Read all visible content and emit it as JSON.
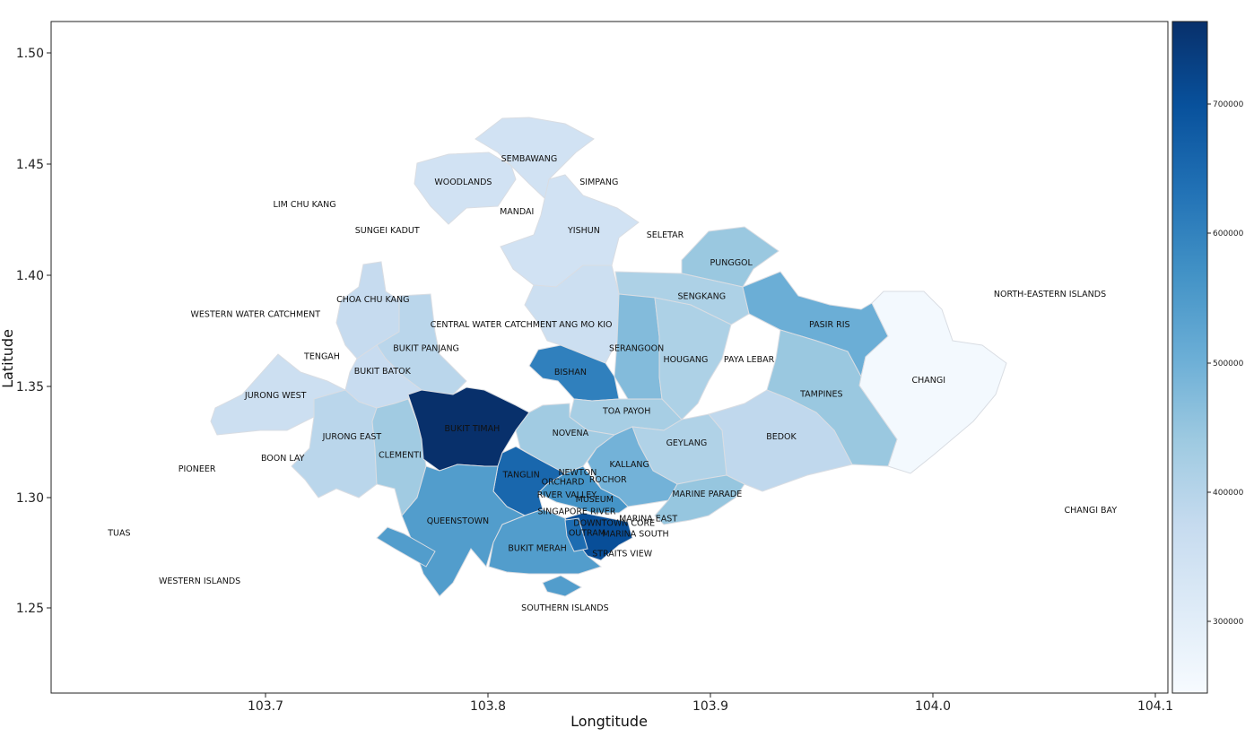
{
  "axes": {
    "xlabel": "Longtitude",
    "ylabel": "Latitude",
    "xlim": [
      103.605,
      104.105
    ],
    "ylim": [
      1.21,
      1.5146
    ],
    "x_ticks": [
      "103.7",
      "103.8",
      "103.9",
      "104.0",
      "104.1"
    ],
    "y_ticks": [
      "1.25",
      "1.30",
      "1.35",
      "1.40",
      "1.45",
      "1.50"
    ]
  },
  "colorbar": {
    "colormap": "Blues",
    "min": 240000,
    "max": 760000,
    "ticks": [
      "300000",
      "400000",
      "500000",
      "600000",
      "700000"
    ]
  },
  "colors": {
    "blues_scale": [
      "#f7fbff",
      "#deebf7",
      "#c6dbef",
      "#9ecae1",
      "#6baed6",
      "#4292c6",
      "#2171b5",
      "#08519c",
      "#08306b"
    ],
    "region_border": "#d9dde3"
  },
  "regions": [
    {
      "name": "SEMBAWANG",
      "value": 340000
    },
    {
      "name": "WOODLANDS",
      "value": 340000
    },
    {
      "name": "YISHUN",
      "value": 340000
    },
    {
      "name": "PUNGGOL",
      "value": 440000
    },
    {
      "name": "SENGKANG",
      "value": 410000
    },
    {
      "name": "PASIR RIS",
      "value": 500000
    },
    {
      "name": "CHANGI",
      "value": 250000
    },
    {
      "name": "ANG MO KIO",
      "value": 355000
    },
    {
      "name": "SERANGOON",
      "value": 470000
    },
    {
      "name": "HOUGANG",
      "value": 410000
    },
    {
      "name": "TAMPINES",
      "value": 440000
    },
    {
      "name": "BEDOK",
      "value": 380000
    },
    {
      "name": "CHOA CHU KANG",
      "value": 370000
    },
    {
      "name": "BUKIT PANJANG",
      "value": 390000
    },
    {
      "name": "BUKIT BATOK",
      "value": 365000
    },
    {
      "name": "JURONG WEST",
      "value": 355000
    },
    {
      "name": "JURONG EAST",
      "value": 390000
    },
    {
      "name": "CLEMENTI",
      "value": 430000
    },
    {
      "name": "BUKIT TIMAH",
      "value": 760000
    },
    {
      "name": "BISHAN",
      "value": 600000
    },
    {
      "name": "TOA PAYOH",
      "value": 420000
    },
    {
      "name": "NOVENA",
      "value": 430000
    },
    {
      "name": "GEYLANG",
      "value": 405000
    },
    {
      "name": "KALLANG",
      "value": 490000
    },
    {
      "name": "MARINE PARADE",
      "value": 445000
    },
    {
      "name": "TANGLIN",
      "value": 650000
    },
    {
      "name": "QUEENSTOWN",
      "value": 540000
    },
    {
      "name": "BUKIT MERAH",
      "value": 540000
    },
    {
      "name": "SOUTHERN ISLANDS",
      "value": 540000
    },
    {
      "name": "DOWNTOWN CORE",
      "value": 700000
    },
    {
      "name": "OUTRAM",
      "value": 640000
    },
    {
      "name": "ROCHOR",
      "value": 560000
    }
  ],
  "labels": [
    {
      "text": "SEMBAWANG",
      "lon": 103.819,
      "lat": 1.4521
    },
    {
      "text": "WOODLANDS",
      "lon": 103.7895,
      "lat": 1.4417
    },
    {
      "text": "SIMPANG",
      "lon": 103.8503,
      "lat": 1.4417
    },
    {
      "text": "MANDAI",
      "lon": 103.8135,
      "lat": 1.4281
    },
    {
      "text": "LIM CHU KANG",
      "lon": 103.7185,
      "lat": 1.4314
    },
    {
      "text": "SUNGEI KADUT",
      "lon": 103.7555,
      "lat": 1.4196
    },
    {
      "text": "YISHUN",
      "lon": 103.8435,
      "lat": 1.4196
    },
    {
      "text": "SELETAR",
      "lon": 103.8799,
      "lat": 1.4177
    },
    {
      "text": "PUNGGOL",
      "lon": 103.9095,
      "lat": 1.4051
    },
    {
      "text": "NORTH-EASTERN ISLANDS",
      "lon": 104.0522,
      "lat": 1.3908
    },
    {
      "text": "SENGKANG",
      "lon": 103.8963,
      "lat": 1.3898
    },
    {
      "text": "CHOA CHU KANG",
      "lon": 103.7491,
      "lat": 1.3883
    },
    {
      "text": "WESTERN WATER CATCHMENT",
      "lon": 103.6965,
      "lat": 1.3817
    },
    {
      "text": "CENTRAL WATER CATCHMENT",
      "lon": 103.8031,
      "lat": 1.3769
    },
    {
      "text": "ANG MO KIO",
      "lon": 103.8443,
      "lat": 1.3769
    },
    {
      "text": "PASIR RIS",
      "lon": 103.9535,
      "lat": 1.3769
    },
    {
      "text": "BUKIT PANJANG",
      "lon": 103.7729,
      "lat": 1.3661
    },
    {
      "text": "SERANGOON",
      "lon": 103.8671,
      "lat": 1.3661
    },
    {
      "text": "TENGAH",
      "lon": 103.7263,
      "lat": 1.3626
    },
    {
      "text": "HOUGANG",
      "lon": 103.8891,
      "lat": 1.3611
    },
    {
      "text": "PAYA LEBAR",
      "lon": 103.9175,
      "lat": 1.3611
    },
    {
      "text": "BUKIT BATOK",
      "lon": 103.7533,
      "lat": 1.3558
    },
    {
      "text": "BISHAN",
      "lon": 103.8375,
      "lat": 1.3553
    },
    {
      "text": "CHANGI",
      "lon": 103.9979,
      "lat": 1.3518
    },
    {
      "text": "JURONG WEST",
      "lon": 103.7055,
      "lat": 1.3449
    },
    {
      "text": "TAMPINES",
      "lon": 103.9499,
      "lat": 1.3454
    },
    {
      "text": "TOA PAYOH",
      "lon": 103.8627,
      "lat": 1.3376
    },
    {
      "text": "BUKIT TIMAH",
      "lon": 103.7935,
      "lat": 1.3297
    },
    {
      "text": "NOVENA",
      "lon": 103.8375,
      "lat": 1.3277
    },
    {
      "text": "BEDOK",
      "lon": 103.9319,
      "lat": 1.3262
    },
    {
      "text": "JURONG EAST",
      "lon": 103.7397,
      "lat": 1.3262
    },
    {
      "text": "GEYLANG",
      "lon": 103.8895,
      "lat": 1.3233
    },
    {
      "text": "CLEMENTI",
      "lon": 103.7612,
      "lat": 1.3178
    },
    {
      "text": "BOON LAY",
      "lon": 103.7087,
      "lat": 1.3164
    },
    {
      "text": "PIONEER",
      "lon": 103.6703,
      "lat": 1.3114
    },
    {
      "text": "KALLANG",
      "lon": 103.8639,
      "lat": 1.3134
    },
    {
      "text": "NEWTON",
      "lon": 103.8407,
      "lat": 1.3099
    },
    {
      "text": "TANGLIN",
      "lon": 103.8155,
      "lat": 1.3089
    },
    {
      "text": "ORCHARD",
      "lon": 103.8341,
      "lat": 1.3055
    },
    {
      "text": "ROCHOR",
      "lon": 103.8543,
      "lat": 1.3065
    },
    {
      "text": "RIVER VALLEY",
      "lon": 103.8359,
      "lat": 1.2996
    },
    {
      "text": "MARINE PARADE",
      "lon": 103.8987,
      "lat": 1.3001
    },
    {
      "text": "MUSEUM",
      "lon": 103.8483,
      "lat": 1.2976
    },
    {
      "text": "SINGAPORE RIVER",
      "lon": 103.8403,
      "lat": 1.2922
    },
    {
      "text": "CHANGI BAY",
      "lon": 104.0704,
      "lat": 1.2927
    },
    {
      "text": "QUEENSTOWN",
      "lon": 103.7871,
      "lat": 1.2878
    },
    {
      "text": "MARINA EAST",
      "lon": 103.8723,
      "lat": 1.2888
    },
    {
      "text": "DOWNTOWN CORE",
      "lon": 103.8571,
      "lat": 1.2868
    },
    {
      "text": "TUAS",
      "lon": 103.6355,
      "lat": 1.2824
    },
    {
      "text": "OUTRAM",
      "lon": 103.8449,
      "lat": 1.2824
    },
    {
      "text": "MARINA SOUTH",
      "lon": 103.8667,
      "lat": 1.2819
    },
    {
      "text": "BUKIT MERAH",
      "lon": 103.8227,
      "lat": 1.2755
    },
    {
      "text": "STRAITS VIEW",
      "lon": 103.8607,
      "lat": 1.273
    },
    {
      "text": "WESTERN ISLANDS",
      "lon": 103.6715,
      "lat": 1.2607
    },
    {
      "text": "SOUTHERN ISLANDS",
      "lon": 103.8351,
      "lat": 1.2484
    }
  ]
}
